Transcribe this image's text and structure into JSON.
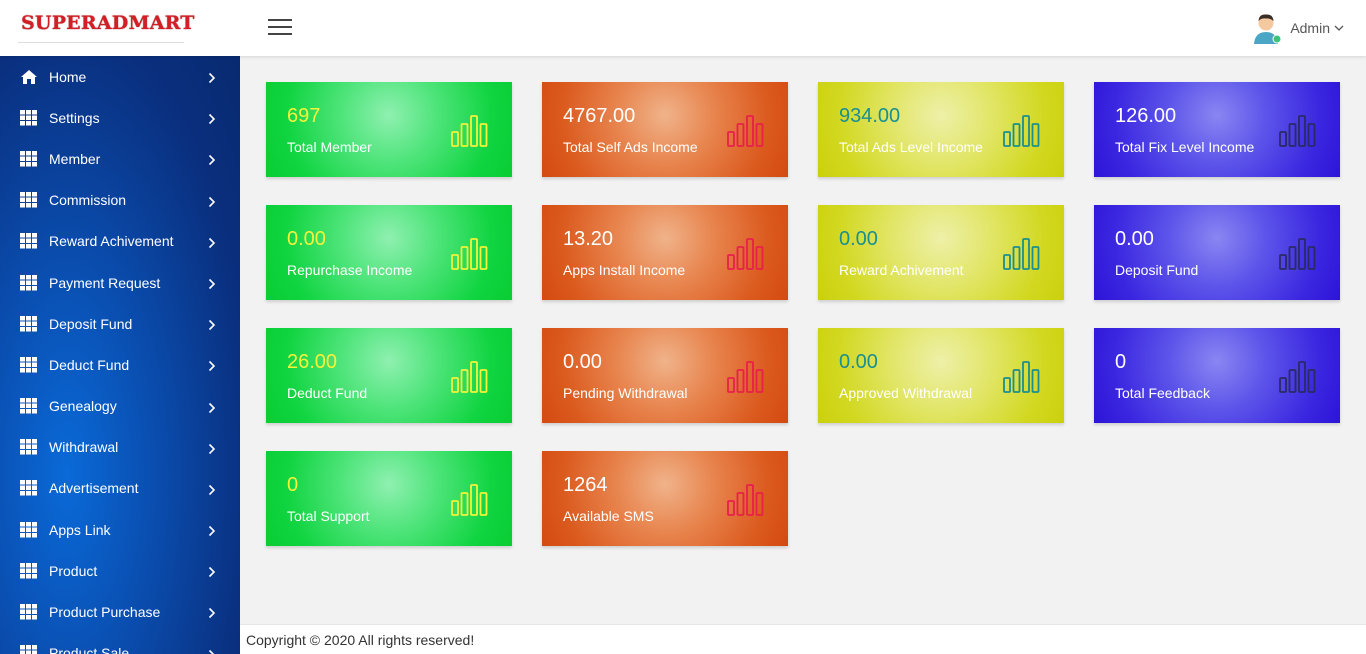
{
  "brand": {
    "name": "SUPERADMART",
    "logo_icon": "brand-logo-icon"
  },
  "header": {
    "menu_icon": "hamburger-icon",
    "user_name": "Admin",
    "user_caret_icon": "chevron-down-icon"
  },
  "sidebar": {
    "items": [
      {
        "label": "Home",
        "icon": "home-icon"
      },
      {
        "label": "Settings",
        "icon": "grid-icon"
      },
      {
        "label": "Member",
        "icon": "grid-icon"
      },
      {
        "label": "Commission",
        "icon": "grid-icon"
      },
      {
        "label": "Reward Achivement",
        "icon": "grid-icon"
      },
      {
        "label": "Payment Request",
        "icon": "grid-icon"
      },
      {
        "label": "Deposit Fund",
        "icon": "grid-icon"
      },
      {
        "label": "Deduct Fund",
        "icon": "grid-icon"
      },
      {
        "label": "Genealogy",
        "icon": "grid-icon"
      },
      {
        "label": "Withdrawal",
        "icon": "grid-icon"
      },
      {
        "label": "Advertisement",
        "icon": "grid-icon"
      },
      {
        "label": "Apps Link",
        "icon": "grid-icon"
      },
      {
        "label": "Product",
        "icon": "grid-icon"
      },
      {
        "label": "Product Purchase",
        "icon": "grid-icon"
      },
      {
        "label": "Product Sale",
        "icon": "grid-icon"
      }
    ]
  },
  "cards": [
    {
      "value": "697",
      "label": "Total Member",
      "theme": "green",
      "icon": "bar-chart-icon"
    },
    {
      "value": "4767.00",
      "label": "Total Self Ads Income",
      "theme": "orange",
      "icon": "bar-chart-icon"
    },
    {
      "value": "934.00",
      "label": "Total Ads Level Income",
      "theme": "yellow",
      "icon": "bar-chart-icon"
    },
    {
      "value": "126.00",
      "label": "Total Fix Level Income",
      "theme": "blue",
      "icon": "bar-chart-icon"
    },
    {
      "value": "0.00",
      "label": "Repurchase Income",
      "theme": "green",
      "icon": "bar-chart-icon"
    },
    {
      "value": "13.20",
      "label": "Apps Install Income",
      "theme": "orange",
      "icon": "bar-chart-icon"
    },
    {
      "value": "0.00",
      "label": "Reward Achivement",
      "theme": "yellow",
      "icon": "bar-chart-icon"
    },
    {
      "value": "0.00",
      "label": "Deposit Fund",
      "theme": "blue",
      "icon": "bar-chart-icon"
    },
    {
      "value": "26.00",
      "label": "Deduct Fund",
      "theme": "green",
      "icon": "bar-chart-icon"
    },
    {
      "value": "0.00",
      "label": "Pending Withdrawal",
      "theme": "orange",
      "icon": "bar-chart-icon"
    },
    {
      "value": "0.00",
      "label": "Approved Withdrawal",
      "theme": "yellow",
      "icon": "bar-chart-icon"
    },
    {
      "value": "0",
      "label": "Total Feedback",
      "theme": "blue",
      "icon": "bar-chart-icon"
    },
    {
      "value": "0",
      "label": "Total Support",
      "theme": "green",
      "icon": "bar-chart-icon"
    },
    {
      "value": "1264",
      "label": "Available SMS",
      "theme": "orange",
      "icon": "bar-chart-icon"
    }
  ],
  "colors": {
    "green_icon": "#f4f43a",
    "orange_icon": "#e8204a",
    "yellow_icon": "#1a8f8f",
    "blue_icon": "#2a2a66"
  },
  "footer": {
    "text": "Copyright © 2020 All rights reserved!"
  }
}
